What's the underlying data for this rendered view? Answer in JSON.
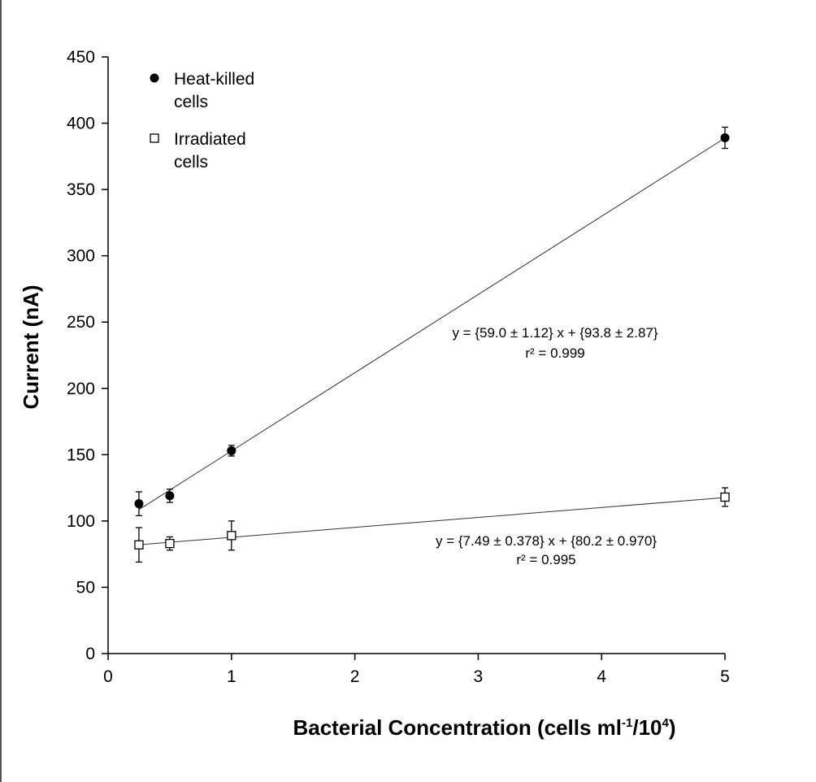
{
  "chart_data": {
    "type": "scatter",
    "xlabel": "Bacterial Concentration (cells ml",
    "xlabel_sup1": "-1",
    "xlabel_mid": "/10",
    "xlabel_sup2": "4",
    "xlabel_end": ")",
    "ylabel": "Current (nA)",
    "xlim": [
      0,
      5
    ],
    "ylim": [
      0,
      450
    ],
    "xticks": [
      0,
      1,
      2,
      3,
      4,
      5
    ],
    "yticks": [
      0,
      50,
      100,
      150,
      200,
      250,
      300,
      350,
      400,
      450
    ],
    "grid": false,
    "legend_position": "top-left",
    "legend": [
      {
        "line1": "Heat-killed",
        "line2": "cells",
        "marker": "filled-circle"
      },
      {
        "line1": "Irradiated",
        "line2": "cells",
        "marker": "open-square"
      }
    ],
    "series": [
      {
        "marker": "filled-circle",
        "x": [
          0.25,
          0.5,
          1,
          5
        ],
        "y": [
          113,
          119,
          153,
          389
        ],
        "err": [
          9,
          5,
          4,
          8
        ],
        "fit": {
          "slope": 59.0,
          "intercept": 93.8
        }
      },
      {
        "marker": "open-square",
        "x": [
          0.25,
          0.5,
          1,
          5
        ],
        "y": [
          82,
          83,
          89,
          118
        ],
        "err": [
          13,
          5,
          11,
          7
        ],
        "fit": {
          "slope": 7.49,
          "intercept": 80.2
        }
      }
    ],
    "annotations": [
      {
        "line1": "y = {59.0 ± 1.12} x + {93.8 ± 2.87}",
        "line2": "r² = 0.999"
      },
      {
        "line1": "y  = {7.49 ± 0.378} x + {80.2 ± 0.970}",
        "line2": "r² = 0.995"
      }
    ]
  }
}
